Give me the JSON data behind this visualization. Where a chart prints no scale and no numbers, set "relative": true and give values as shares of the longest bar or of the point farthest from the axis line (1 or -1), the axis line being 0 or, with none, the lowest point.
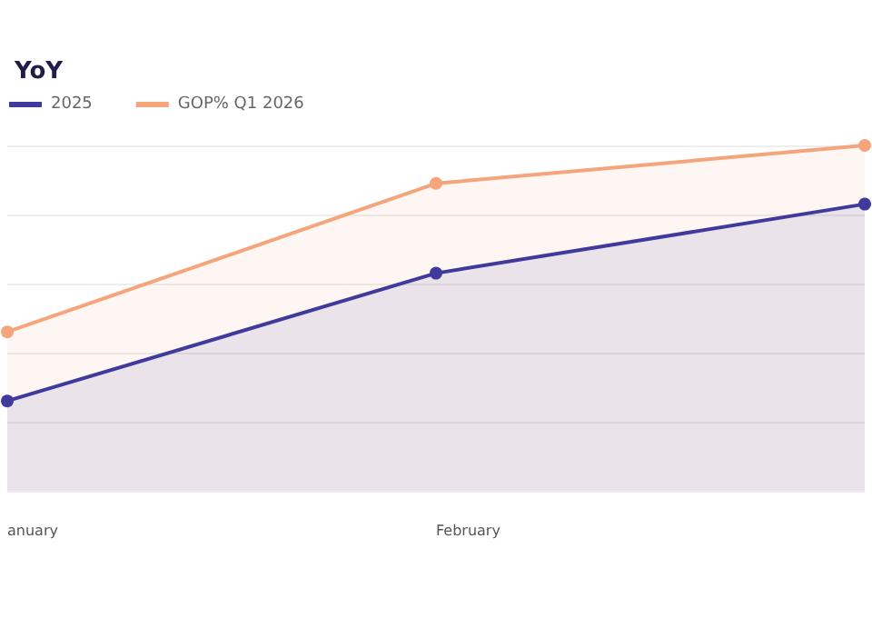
{
  "chart_data": {
    "type": "area",
    "title": "YoY",
    "relative": true,
    "categories": [
      "anuary",
      "February",
      null
    ],
    "series": [
      {
        "name": "2025",
        "color": "#3f3a9c",
        "values": [
          0.26,
          0.63,
          0.83
        ]
      },
      {
        "name": "GOP% Q1 2026",
        "color": "#f4a57c",
        "values": [
          0.46,
          0.89,
          1
        ]
      }
    ],
    "grid": "y",
    "legend": "top left",
    "marker": "circle"
  }
}
